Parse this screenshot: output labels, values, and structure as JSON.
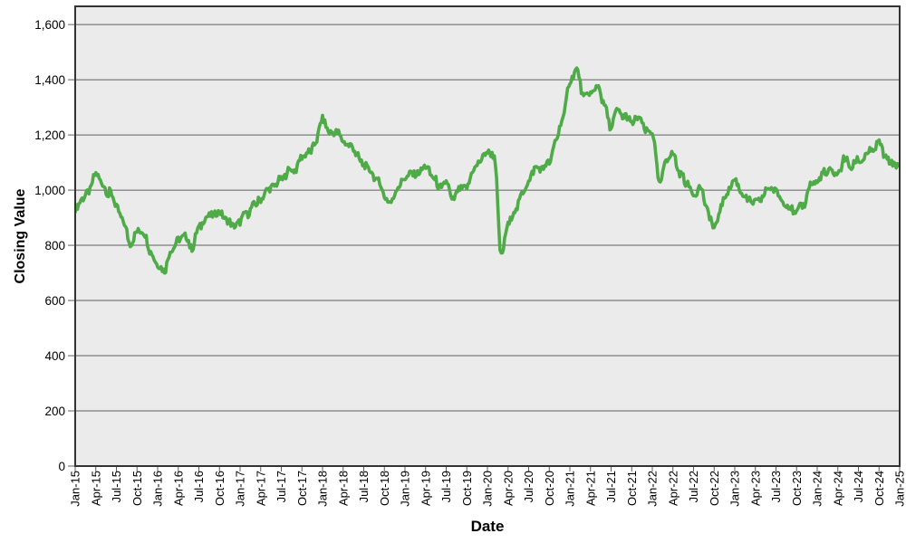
{
  "chart_data": {
    "type": "line",
    "title": "",
    "xlabel": "Date",
    "ylabel": "Closing Value",
    "ylim": [
      0,
      1666
    ],
    "y_gridline_step": 200,
    "grid": true,
    "legend": false,
    "plot_background": "#ebebeb",
    "gridline_color": "#5f5f5f",
    "border_color": "#333333",
    "text_color": "#000000",
    "y_tick_labels": [
      "0",
      "200",
      "400",
      "600",
      "800",
      "1,000",
      "1,200",
      "1,400",
      "1,600"
    ],
    "x_tick_labels": [
      "Jan-15",
      "Apr-15",
      "Jul-15",
      "Oct-15",
      "Jan-16",
      "Apr-16",
      "Jul-16",
      "Oct-16",
      "Jan-17",
      "Apr-17",
      "Jul-17",
      "Oct-17",
      "Jan-18",
      "Apr-18",
      "Jul-18",
      "Oct-18",
      "Jan-19",
      "Apr-19",
      "Jul-19",
      "Oct-19",
      "Jan-20",
      "Apr-20",
      "Jul-20",
      "Oct-20",
      "Jan-21",
      "Apr-21",
      "Jul-21",
      "Oct-21",
      "Jan-22",
      "Apr-22",
      "Jul-22",
      "Oct-22",
      "Jan-23",
      "Apr-23",
      "Jul-23",
      "Oct-23",
      "Jan-24",
      "Apr-24",
      "Jul-24",
      "Oct-24",
      "Jan-25"
    ],
    "series": [
      {
        "name": "Closing Value",
        "color": "#4faa48",
        "x_start": "Jan-2015",
        "x_step": "1 month",
        "values": [
          945,
          975,
          1005,
          1065,
          1030,
          985,
          945,
          890,
          795,
          845,
          845,
          780,
          730,
          705,
          775,
          815,
          825,
          795,
          860,
          905,
          910,
          925,
          895,
          860,
          880,
          915,
          950,
          960,
          1000,
          1012,
          1042,
          1065,
          1078,
          1114,
          1137,
          1175,
          1260,
          1205,
          1215,
          1175,
          1160,
          1135,
          1085,
          1075,
          1040,
          975,
          950,
          1010,
          1040,
          1065,
          1070,
          1090,
          1060,
          1000,
          1040,
          960,
          1005,
          1010,
          1080,
          1110,
          1140,
          1130,
          765,
          880,
          930,
          990,
          1025,
          1090,
          1085,
          1095,
          1185,
          1265,
          1400,
          1445,
          1340,
          1360,
          1370,
          1320,
          1235,
          1285,
          1260,
          1240,
          1270,
          1205,
          1200,
          1030,
          1100,
          1135,
          1070,
          1015,
          990,
          1015,
          935,
          855,
          945,
          990,
          1035,
          990,
          955,
          965,
          975,
          1020,
          1005,
          965,
          950,
          915,
          955,
          1020,
          1022,
          1058,
          1080,
          1065,
          1105,
          1080,
          1105,
          1125,
          1145,
          1180,
          1125,
          1105,
          1085
        ]
      }
    ]
  }
}
